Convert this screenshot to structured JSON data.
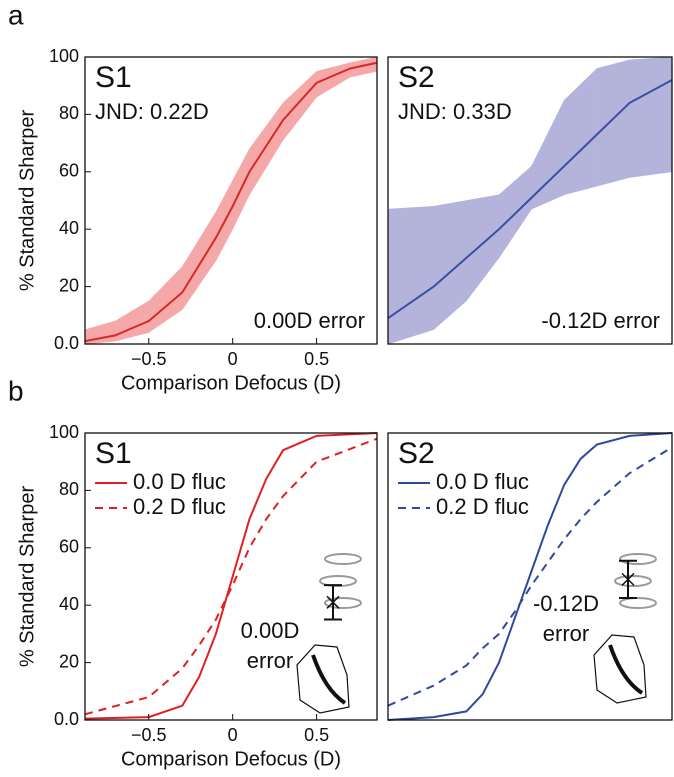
{
  "chart_data": [
    {
      "type": "band-line",
      "panel_label": "a",
      "title": "S1",
      "subtitle": "JND: 0.22D",
      "annotation": "0.00D error",
      "y_label": "% Standard Sharper",
      "x_label": "Comparison Defocus (D)",
      "xlim": [
        -0.88,
        0.86
      ],
      "ylim": [
        0,
        100
      ],
      "xticks": [
        {
          "value": -0.5,
          "label": "−0.5"
        },
        0,
        0.5
      ],
      "yticks": [
        {
          "value": 0,
          "label": "0.0"
        },
        20,
        40,
        60,
        80,
        100
      ],
      "x": [
        -0.88,
        -0.7,
        -0.5,
        -0.3,
        -0.1,
        0,
        0.1,
        0.3,
        0.5,
        0.7,
        0.86
      ],
      "band": {
        "color": "#f4a9a8",
        "lower": [
          0,
          1,
          4,
          12,
          29,
          40,
          52,
          71,
          86,
          93,
          95
        ],
        "upper": [
          5,
          8,
          15,
          27,
          46,
          57,
          68,
          84,
          95,
          98,
          100
        ]
      },
      "series": [
        {
          "color": "#d42a2a",
          "values": [
            1,
            3,
            8,
            18,
            37,
            48,
            60,
            78,
            91,
            96,
            98
          ]
        }
      ]
    },
    {
      "type": "band-line",
      "title": "S2",
      "subtitle": "JND: 0.33D",
      "annotation": "-0.12D error",
      "xlim": [
        -0.88,
        0.86
      ],
      "ylim": [
        0,
        100
      ],
      "x": [
        -0.88,
        -0.6,
        -0.4,
        -0.2,
        0,
        0.2,
        0.4,
        0.6,
        0.86
      ],
      "band": {
        "color": "#b4b3db",
        "lower": [
          0,
          5,
          15,
          30,
          47,
          52,
          55,
          58,
          60
        ],
        "upper": [
          47,
          48,
          50,
          52,
          62,
          85,
          96,
          99,
          100
        ]
      },
      "series": [
        {
          "color": "#3a4fa0",
          "values": [
            9,
            20,
            30,
            40,
            51,
            62,
            73,
            84,
            92
          ]
        }
      ]
    },
    {
      "type": "line",
      "panel_label": "b",
      "title": "S1",
      "annotation": [
        "0.00D",
        "error"
      ],
      "y_label": "% Standard Sharper",
      "x_label": "Comparison Defocus (D)",
      "xlim": [
        -0.88,
        0.86
      ],
      "ylim": [
        0,
        100
      ],
      "xticks": [
        {
          "value": -0.5,
          "label": "−0.5"
        },
        0,
        0.5
      ],
      "yticks": [
        {
          "value": 0,
          "label": "0.0"
        },
        20,
        40,
        60,
        80,
        100
      ],
      "x": [
        -0.88,
        -0.5,
        -0.3,
        -0.2,
        -0.1,
        0,
        0.1,
        0.2,
        0.3,
        0.5,
        0.86
      ],
      "series": [
        {
          "name": "0.0 D fluc",
          "color": "#e02020",
          "dash": false,
          "values": [
            0.5,
            1,
            5,
            15,
            30,
            50,
            70,
            84,
            94,
            99,
            100
          ]
        },
        {
          "name": "0.2 D fluc",
          "color": "#e02020",
          "dash": true,
          "values": [
            2,
            8,
            18,
            26,
            35,
            47,
            60,
            70,
            78,
            90,
            98
          ]
        }
      ],
      "error_bar": {
        "value": 41,
        "error": 6
      }
    },
    {
      "type": "line",
      "title": "S2",
      "annotation": [
        "-0.12D",
        "error"
      ],
      "xlim": [
        -0.88,
        0.86
      ],
      "ylim": [
        0,
        100
      ],
      "x": [
        -0.88,
        -0.6,
        -0.4,
        -0.3,
        -0.2,
        -0.1,
        0,
        0.1,
        0.2,
        0.3,
        0.4,
        0.6,
        0.86
      ],
      "series": [
        {
          "name": "0.0 D fluc",
          "color": "#2e4a9e",
          "dash": false,
          "values": [
            0,
            1,
            3,
            9,
            20,
            36,
            52,
            68,
            82,
            91,
            96,
            99,
            100
          ]
        },
        {
          "name": "0.2 D fluc",
          "color": "#2e4a9e",
          "dash": true,
          "values": [
            5,
            12,
            19,
            25,
            30,
            38,
            47,
            55,
            63,
            70,
            76,
            86,
            95
          ]
        }
      ],
      "error_bar": {
        "value": 49,
        "error": 6.5
      }
    }
  ]
}
